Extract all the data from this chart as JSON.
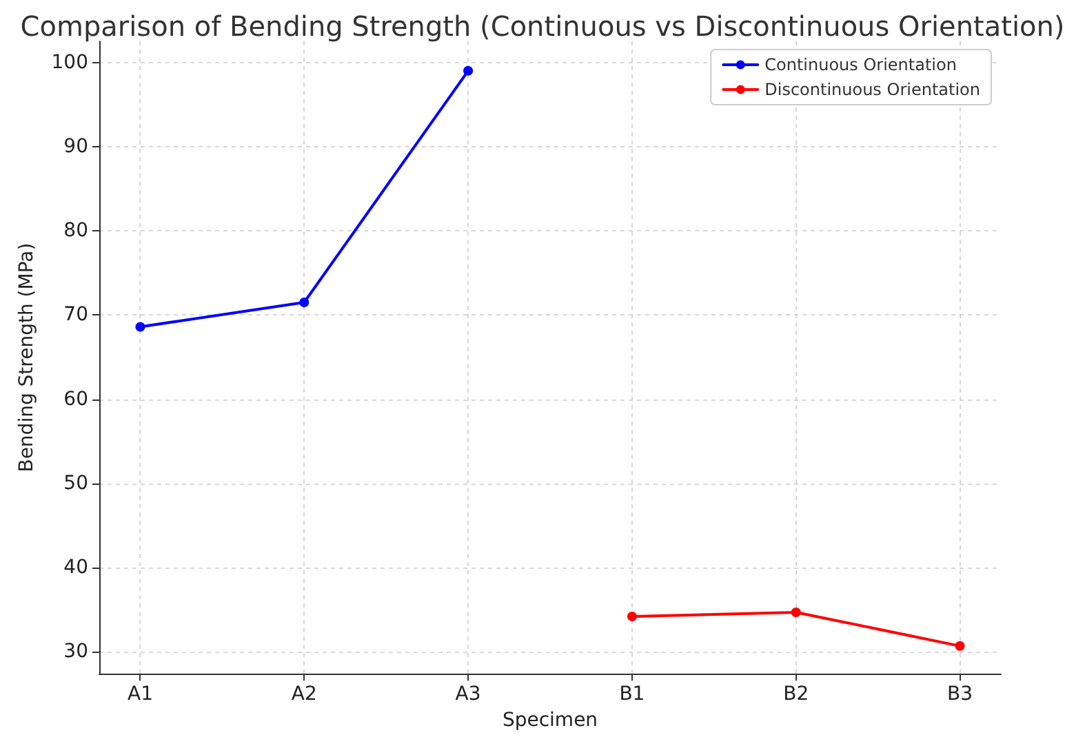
{
  "chart_data": {
    "type": "line",
    "title": "Comparison of Bending Strength (Continuous vs Discontinuous Orientation)",
    "xlabel": "Specimen",
    "ylabel": "Bending Strength (MPa)",
    "categories": [
      "A1",
      "A2",
      "A3",
      "B1",
      "B2",
      "B3"
    ],
    "series": [
      {
        "name": "Continuous Orientation",
        "color": "#0000ff",
        "values": [
          68.6,
          71.5,
          99.0,
          null,
          null,
          null
        ]
      },
      {
        "name": "Discontinuous Orientation",
        "color": "#ff0000",
        "values": [
          null,
          null,
          null,
          34.2,
          34.7,
          30.7
        ]
      }
    ],
    "ylim": [
      27.4,
      102.5
    ],
    "yticks": [
      30,
      40,
      50,
      60,
      70,
      80,
      90,
      100
    ],
    "grid": true,
    "legend": "top right",
    "marker": "circle",
    "line_style": "solid"
  }
}
